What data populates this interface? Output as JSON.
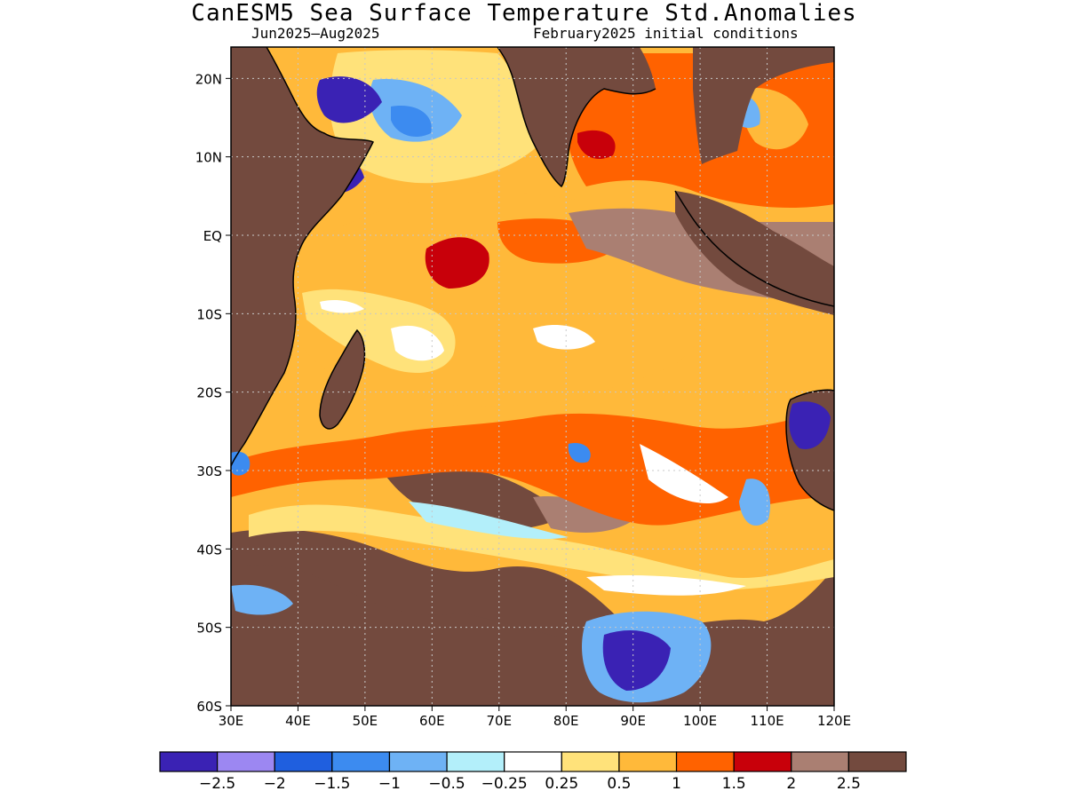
{
  "title": "CanESM5 Sea Surface Temperature Std.Anomalies",
  "subtitle_left": "Jun2025–Aug2025",
  "subtitle_right": "February2025 initial conditions",
  "map": {
    "lon_range": [
      30,
      120
    ],
    "lat_range": [
      -60,
      24
    ],
    "lon_ticks": [
      "30E",
      "40E",
      "50E",
      "60E",
      "70E",
      "80E",
      "90E",
      "100E",
      "110E",
      "120E"
    ],
    "lat_ticks": [
      "20N",
      "10N",
      "EQ",
      "10S",
      "20S",
      "30S",
      "40S",
      "50S",
      "60S"
    ],
    "grid": true
  },
  "colorbar": {
    "colors": [
      "#3a22b4",
      "#9c87f2",
      "#1f5fdf",
      "#3c8bf0",
      "#6eb2f5",
      "#b3effa",
      "#ffffff",
      "#ffe27a",
      "#ffb93a",
      "#ff6200",
      "#c8000a",
      "#aa7f72",
      "#734a3e"
    ],
    "labels": [
      "−2.5",
      "−2",
      "−1.5",
      "−1",
      "−0.5",
      "−0.25",
      "0.25",
      "0.5",
      "1",
      "1.5",
      "2",
      "2.5"
    ]
  }
}
